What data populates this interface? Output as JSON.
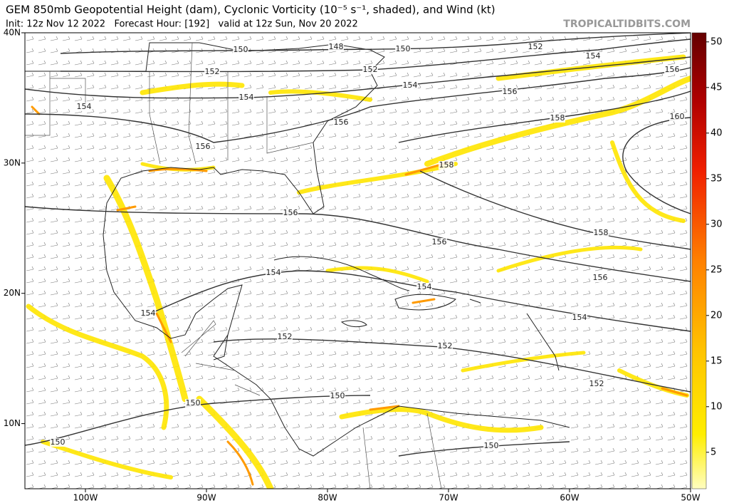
{
  "header": {
    "title": "GEM 850mb Geopotential Height (dam), Cyclonic Vorticity (10⁻⁵ s⁻¹, shaded), and Wind (kt)",
    "subtitle": "Init: 12z Nov 12 2022   Forecast Hour: [192]   valid at 12z Sun, Nov 20 2022",
    "watermark": "TROPICALTIDBITS.COM"
  },
  "map": {
    "lon_range": [
      -105,
      -50
    ],
    "lat_range": [
      5,
      40
    ],
    "lon_ticks": [
      {
        "value": -100,
        "label": "100W"
      },
      {
        "value": -90,
        "label": "90W"
      },
      {
        "value": -80,
        "label": "80W"
      },
      {
        "value": -70,
        "label": "70W"
      },
      {
        "value": -60,
        "label": "60W"
      },
      {
        "value": -50,
        "label": "50W"
      }
    ],
    "lat_ticks": [
      {
        "value": 40,
        "label": "40N"
      },
      {
        "value": 30,
        "label": "30N"
      },
      {
        "value": 20,
        "label": "20N"
      },
      {
        "value": 10,
        "label": "10N"
      }
    ],
    "contour_labels": [
      150,
      148,
      150,
      152,
      154,
      156,
      152,
      152,
      154,
      154,
      156,
      154,
      158,
      160,
      156,
      156,
      158,
      156,
      158,
      156,
      154,
      156,
      154,
      154,
      154,
      152,
      152,
      152,
      150,
      150,
      150,
      150
    ]
  },
  "colorbar": {
    "range": [
      1,
      51
    ],
    "ticks": [
      5,
      10,
      15,
      20,
      25,
      30,
      35,
      40,
      45,
      50
    ]
  }
}
